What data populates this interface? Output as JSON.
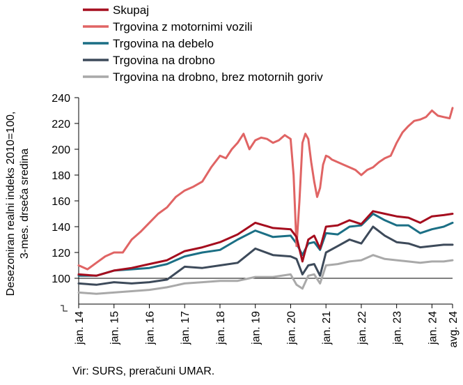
{
  "chart_data": {
    "type": "line",
    "ylabel_lines": [
      "Desezoniran realni indeks 2010=100,",
      "3-mes. drseča sredina"
    ],
    "ylim": [
      80,
      240
    ],
    "yticks": [
      100,
      120,
      140,
      160,
      180,
      200,
      220,
      240
    ],
    "x_tick_labels": [
      "jan. 14",
      "jan. 15",
      "jan. 16",
      "jan. 17",
      "jan. 18",
      "jan. 19",
      "jan. 20",
      "jan. 21",
      "jan. 22",
      "jan. 23",
      "jan. 24",
      "avg. 24"
    ],
    "x_tick_months": [
      0,
      12,
      24,
      36,
      48,
      60,
      72,
      84,
      96,
      108,
      120,
      127
    ],
    "x_range_months": [
      0,
      127
    ],
    "reference_line": 100,
    "grid": false,
    "legend_position": "top",
    "series": [
      {
        "name": "Skupaj",
        "color": "#a50d1e",
        "x": [
          0,
          6,
          12,
          18,
          24,
          30,
          36,
          42,
          48,
          54,
          60,
          66,
          72,
          74,
          76,
          78,
          80,
          82,
          84,
          88,
          92,
          96,
          100,
          104,
          108,
          112,
          116,
          120,
          124,
          127
        ],
        "values": [
          103,
          102,
          106,
          108,
          111,
          114,
          121,
          124,
          128,
          134,
          143,
          139,
          138,
          132,
          113,
          130,
          133,
          123,
          140,
          141,
          145,
          142,
          152,
          150,
          148,
          147,
          143,
          148,
          149,
          150
        ]
      },
      {
        "name": "Trgovina z motornimi vozili",
        "color": "#e06464",
        "x": [
          0,
          3,
          6,
          9,
          12,
          15,
          18,
          21,
          24,
          27,
          30,
          33,
          36,
          39,
          42,
          45,
          48,
          50,
          52,
          54,
          56,
          58,
          60,
          62,
          64,
          66,
          68,
          70,
          72,
          73,
          74,
          75,
          76,
          77,
          78,
          79,
          80,
          81,
          82,
          83,
          84,
          85,
          86,
          88,
          90,
          92,
          94,
          96,
          98,
          100,
          102,
          104,
          106,
          108,
          110,
          112,
          114,
          116,
          118,
          120,
          122,
          124,
          126,
          127
        ],
        "values": [
          110,
          107,
          112,
          117,
          120,
          120,
          130,
          136,
          143,
          150,
          155,
          163,
          168,
          171,
          175,
          186,
          195,
          193,
          200,
          205,
          212,
          200,
          207,
          209,
          208,
          205,
          207,
          211,
          208,
          180,
          125,
          160,
          205,
          212,
          208,
          190,
          175,
          163,
          170,
          188,
          195,
          194,
          192,
          190,
          188,
          186,
          184,
          180,
          184,
          186,
          190,
          193,
          195,
          205,
          213,
          218,
          222,
          223,
          225,
          230,
          226,
          225,
          224,
          232
        ]
      },
      {
        "name": "Trgovina na debelo",
        "color": "#1b6f85",
        "x": [
          0,
          6,
          12,
          18,
          24,
          30,
          36,
          42,
          48,
          54,
          60,
          66,
          72,
          74,
          76,
          78,
          80,
          82,
          84,
          88,
          92,
          96,
          100,
          104,
          108,
          112,
          116,
          120,
          124,
          127
        ],
        "values": [
          102,
          102,
          106,
          107,
          108,
          111,
          117,
          120,
          122,
          130,
          137,
          132,
          133,
          127,
          118,
          127,
          128,
          122,
          135,
          134,
          140,
          141,
          150,
          145,
          141,
          141,
          135,
          138,
          140,
          143
        ]
      },
      {
        "name": "Trgovina na drobno",
        "color": "#3d4a5a",
        "x": [
          0,
          6,
          12,
          18,
          24,
          30,
          36,
          42,
          48,
          54,
          60,
          66,
          72,
          74,
          76,
          78,
          80,
          82,
          84,
          88,
          92,
          96,
          100,
          104,
          108,
          112,
          116,
          120,
          124,
          127
        ],
        "values": [
          96,
          95,
          97,
          96,
          97,
          99,
          109,
          108,
          110,
          112,
          123,
          118,
          117,
          115,
          103,
          110,
          111,
          102,
          120,
          125,
          130,
          127,
          140,
          133,
          128,
          127,
          124,
          125,
          126,
          126
        ]
      },
      {
        "name": "Trgovina na drobno, brez motornih goriv",
        "color": "#a9a9a9",
        "x": [
          0,
          6,
          12,
          18,
          24,
          30,
          36,
          42,
          48,
          54,
          60,
          66,
          72,
          74,
          76,
          78,
          80,
          82,
          84,
          88,
          92,
          96,
          100,
          104,
          108,
          112,
          116,
          120,
          124,
          127
        ],
        "values": [
          89,
          88,
          89,
          90,
          91,
          93,
          96,
          97,
          98,
          98,
          101,
          101,
          103,
          95,
          92,
          102,
          103,
          96,
          110,
          111,
          113,
          114,
          118,
          115,
          114,
          113,
          112,
          113,
          113,
          114
        ]
      }
    ]
  },
  "source_text": "Vir: SURS, preračuni UMAR."
}
